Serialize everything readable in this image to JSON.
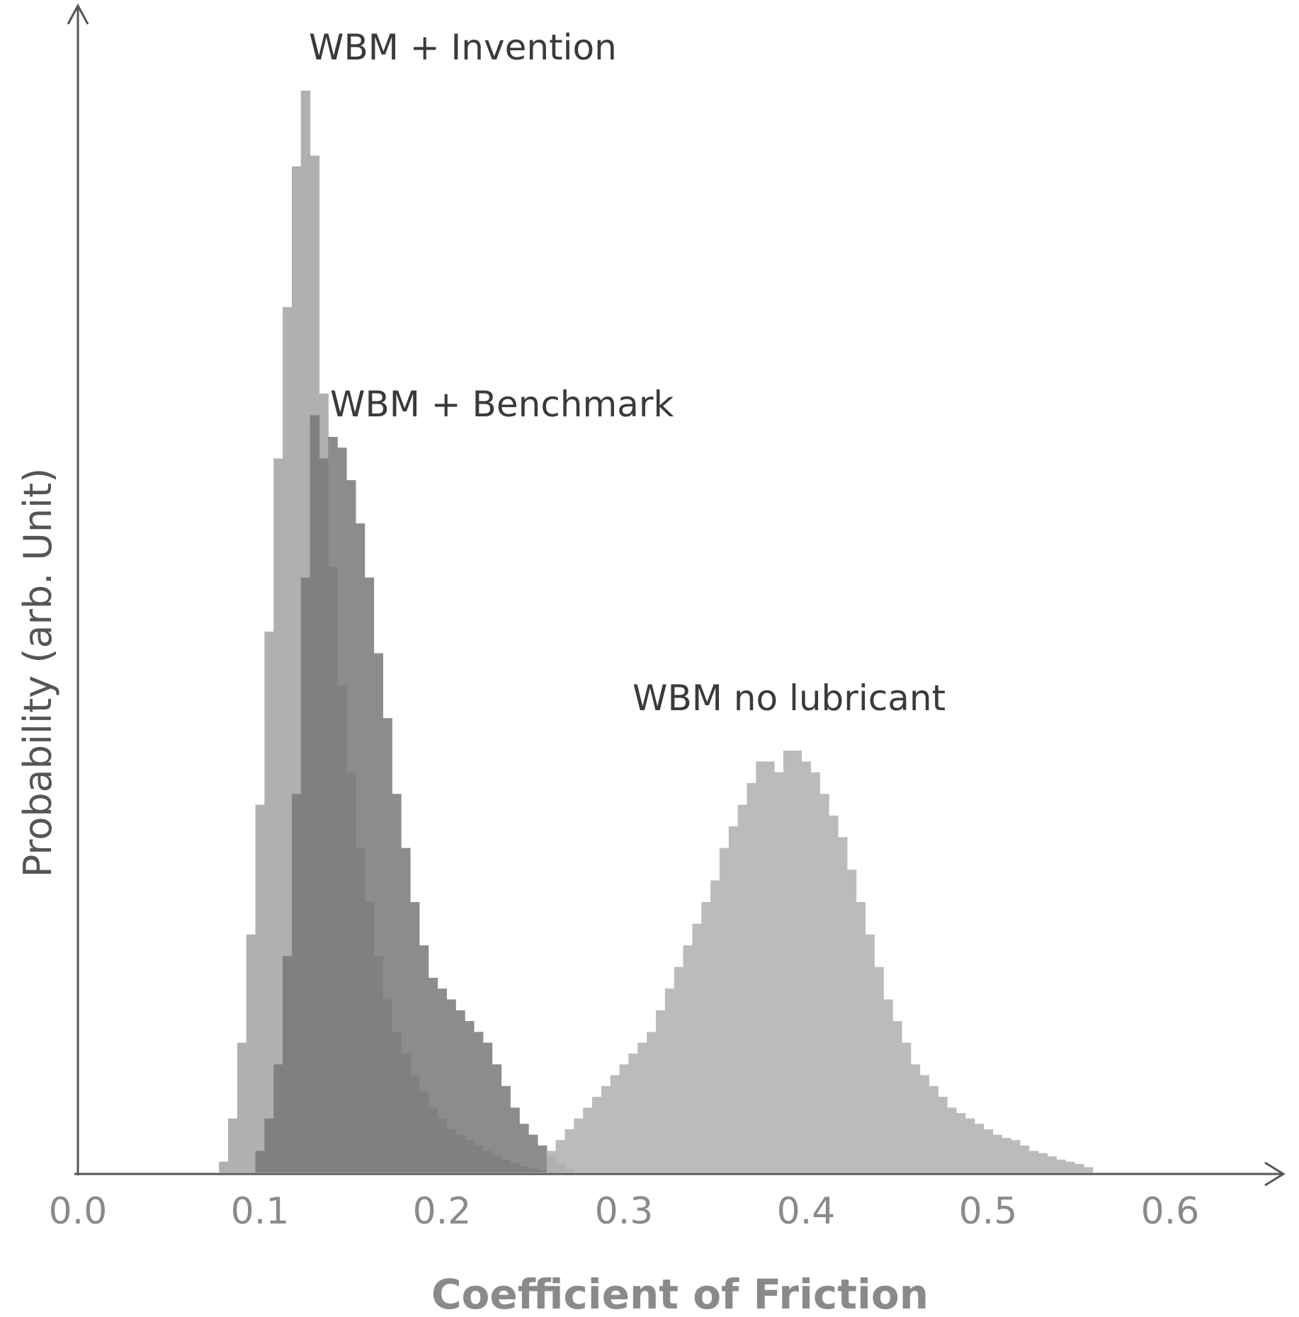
{
  "chart_data": {
    "type": "bar",
    "xlabel": "Coefficient of Friction",
    "ylabel": "Probability (arb. Unit)",
    "xlim": [
      0.0,
      0.65
    ],
    "ylim": [
      0,
      1.0
    ],
    "x_ticks": [
      "0.0",
      "0.1",
      "0.2",
      "0.3",
      "0.4",
      "0.5",
      "0.6"
    ],
    "x_tick_values": [
      0.0,
      0.1,
      0.2,
      0.3,
      0.4,
      0.5,
      0.6
    ],
    "y_ticks": [],
    "grid": false,
    "legend": "none",
    "bin_width": 0.005,
    "series": [
      {
        "name": "WBM + Invention",
        "color": "#a8a8a8",
        "x": [
          0.08,
          0.085,
          0.09,
          0.095,
          0.1,
          0.105,
          0.11,
          0.115,
          0.12,
          0.125,
          0.13,
          0.135,
          0.14,
          0.145,
          0.15,
          0.155,
          0.16,
          0.165,
          0.17,
          0.175,
          0.18,
          0.185,
          0.19,
          0.195,
          0.2,
          0.205,
          0.21,
          0.215,
          0.22,
          0.225,
          0.23,
          0.235,
          0.24,
          0.245,
          0.25,
          0.255,
          0.26
        ],
        "values": [
          0.01,
          0.05,
          0.12,
          0.22,
          0.34,
          0.5,
          0.66,
          0.8,
          0.93,
          1.0,
          0.94,
          0.72,
          0.56,
          0.45,
          0.37,
          0.3,
          0.25,
          0.2,
          0.16,
          0.13,
          0.11,
          0.09,
          0.075,
          0.06,
          0.05,
          0.04,
          0.035,
          0.03,
          0.025,
          0.02,
          0.016,
          0.012,
          0.009,
          0.006,
          0.004,
          0.002,
          0.001
        ]
      },
      {
        "name": "WBM + Benchmark",
        "color": "#787878",
        "x": [
          0.1,
          0.105,
          0.11,
          0.115,
          0.12,
          0.125,
          0.13,
          0.135,
          0.14,
          0.145,
          0.15,
          0.155,
          0.16,
          0.165,
          0.17,
          0.175,
          0.18,
          0.185,
          0.19,
          0.195,
          0.2,
          0.205,
          0.21,
          0.215,
          0.22,
          0.225,
          0.23,
          0.235,
          0.24,
          0.245,
          0.25,
          0.255,
          0.26,
          0.265,
          0.27
        ],
        "values": [
          0.02,
          0.05,
          0.1,
          0.2,
          0.35,
          0.55,
          0.7,
          0.66,
          0.68,
          0.67,
          0.64,
          0.6,
          0.55,
          0.48,
          0.42,
          0.35,
          0.3,
          0.25,
          0.21,
          0.18,
          0.17,
          0.16,
          0.15,
          0.14,
          0.13,
          0.12,
          0.1,
          0.08,
          0.06,
          0.045,
          0.035,
          0.025,
          0.015,
          0.008,
          0.003
        ]
      },
      {
        "name": "WBM no lubricant",
        "color": "#b4b4b4",
        "x": [
          0.26,
          0.265,
          0.27,
          0.275,
          0.28,
          0.285,
          0.29,
          0.295,
          0.3,
          0.305,
          0.31,
          0.315,
          0.32,
          0.325,
          0.33,
          0.335,
          0.34,
          0.345,
          0.35,
          0.355,
          0.36,
          0.365,
          0.37,
          0.375,
          0.38,
          0.385,
          0.39,
          0.395,
          0.4,
          0.405,
          0.41,
          0.415,
          0.42,
          0.425,
          0.43,
          0.435,
          0.44,
          0.445,
          0.45,
          0.455,
          0.46,
          0.465,
          0.47,
          0.475,
          0.48,
          0.485,
          0.49,
          0.495,
          0.5,
          0.505,
          0.51,
          0.515,
          0.52,
          0.525,
          0.53,
          0.535,
          0.54,
          0.545,
          0.55,
          0.555
        ],
        "values": [
          0.02,
          0.03,
          0.04,
          0.05,
          0.06,
          0.07,
          0.08,
          0.09,
          0.1,
          0.11,
          0.12,
          0.13,
          0.15,
          0.17,
          0.19,
          0.21,
          0.23,
          0.25,
          0.27,
          0.3,
          0.32,
          0.34,
          0.36,
          0.38,
          0.38,
          0.37,
          0.39,
          0.39,
          0.38,
          0.37,
          0.35,
          0.33,
          0.31,
          0.28,
          0.25,
          0.22,
          0.19,
          0.16,
          0.14,
          0.12,
          0.1,
          0.09,
          0.08,
          0.07,
          0.06,
          0.055,
          0.05,
          0.045,
          0.04,
          0.035,
          0.032,
          0.03,
          0.025,
          0.02,
          0.018,
          0.015,
          0.012,
          0.01,
          0.008,
          0.005
        ]
      }
    ]
  }
}
